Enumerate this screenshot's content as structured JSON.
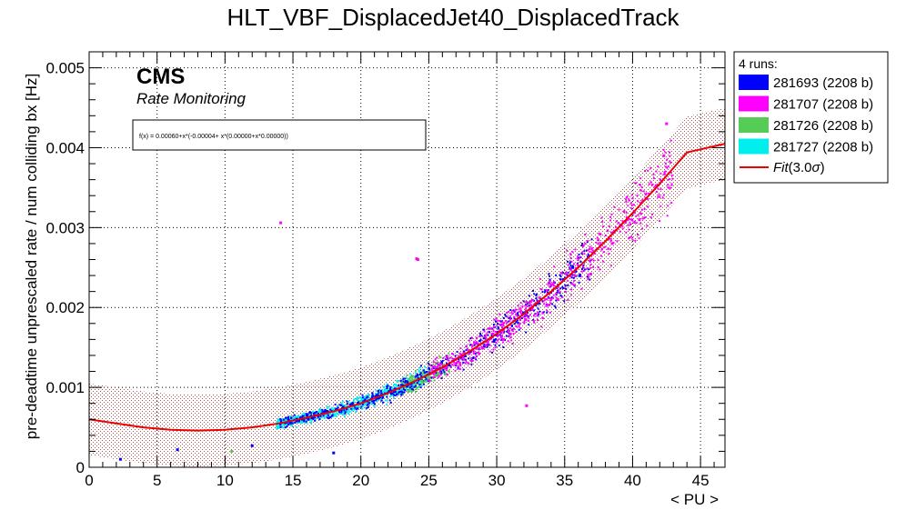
{
  "chart_data": {
    "type": "scatter",
    "title": "HLT_VBF_DisplacedJet40_DisplacedTrack",
    "xlabel": "< PU >",
    "ylabel": "pre-deadtime unprescaled rate / num colliding bx [Hz]",
    "xlim": [
      0,
      46.8
    ],
    "ylim": [
      0,
      0.0052
    ],
    "xticks": [
      "0",
      "5",
      "10",
      "15",
      "20",
      "25",
      "30",
      "35",
      "40",
      "45"
    ],
    "yticks": [
      "0",
      "0.001",
      "0.002",
      "0.003",
      "0.004",
      "0.005"
    ],
    "grid": true,
    "legend_placement": "outside-right",
    "cms_label": "CMS",
    "cms_sublabel": "Rate Monitoring",
    "formula_text": "f(x) = 0.00060+x*(-0.00004+ x*(0.00000+x*0.00000))",
    "legend_header": "4 runs:",
    "series": [
      {
        "name": "281693 (2208 b)",
        "color": "#0000ff",
        "x_range": [
          14,
          37
        ],
        "y_rel_spread": 0.1,
        "x": [
          17.5,
          20.2,
          23.1,
          26.5,
          29.8,
          33.0,
          35.6,
          36.1
        ],
        "y": [
          0.0007,
          0.00082,
          0.00098,
          0.00128,
          0.00158,
          0.00205,
          0.0025,
          0.0024
        ]
      },
      {
        "name": "281707 (2208 b)",
        "color": "#ff00ff",
        "x_range": [
          25,
          43
        ],
        "y_rel_spread": 0.12,
        "x": [
          27.0,
          30.5,
          34.5,
          38.5,
          40.5,
          42.3,
          42.5
        ],
        "y": [
          0.0013,
          0.0016,
          0.0021,
          0.0028,
          0.0031,
          0.0039,
          0.0043
        ]
      },
      {
        "name": "281726 (2208 b)",
        "color": "#55cc55",
        "x_range": [
          23,
          26.5
        ],
        "y_rel_spread": 0.1,
        "x": [
          23.5,
          24.5,
          25.5
        ],
        "y": [
          0.00095,
          0.00108,
          0.00115
        ]
      },
      {
        "name": "281727 (2208 b)",
        "color": "#00eeee",
        "x_range": [
          13.8,
          25
        ],
        "y_rel_spread": 0.1,
        "x": [
          14.5,
          17.0,
          20.0,
          23.0
        ],
        "y": [
          0.00058,
          0.0007,
          0.00082,
          0.00098
        ]
      }
    ],
    "outliers": [
      {
        "x": 14.1,
        "y": 0.00306,
        "color": "#ff00ff"
      },
      {
        "x": 24.1,
        "y": 0.00261,
        "color": "#ff00ff"
      },
      {
        "x": 24.2,
        "y": 0.0026,
        "color": "#ff00ff"
      },
      {
        "x": 32.2,
        "y": 0.00077,
        "color": "#ff00ff"
      },
      {
        "x": 2.3,
        "y": 0.0001,
        "color": "#0000ff"
      },
      {
        "x": 6.5,
        "y": 0.00022,
        "color": "#0000ff"
      },
      {
        "x": 12.0,
        "y": 0.00027,
        "color": "#0000ff"
      },
      {
        "x": 10.5,
        "y": 0.0002,
        "color": "#55cc55"
      },
      {
        "x": 18.0,
        "y": 0.00018,
        "color": "#0000ff"
      }
    ],
    "fit": {
      "name": "Fit(3.0σ)",
      "name_prefix": "Fit",
      "name_arg": "(3.0",
      "name_sigma": "σ",
      "name_close": ")",
      "color": "#ee0000",
      "band_color": "#b45050",
      "x": [
        0,
        2,
        4,
        6,
        8,
        10,
        12,
        14,
        16,
        18,
        20,
        22,
        24,
        26,
        28,
        30,
        32,
        34,
        36,
        38,
        40,
        42,
        44,
        46.8
      ],
      "y": [
        0.0006,
        0.00055,
        0.0005,
        0.00047,
        0.00046,
        0.00047,
        0.0005,
        0.00055,
        0.00062,
        0.0007,
        0.0008,
        0.00093,
        0.00108,
        0.00125,
        0.00145,
        0.00167,
        0.00192,
        0.0022,
        0.0025,
        0.00283,
        0.00318,
        0.00355,
        0.00394,
        0.00405
      ],
      "band_halfwidth": 0.00045
    }
  }
}
